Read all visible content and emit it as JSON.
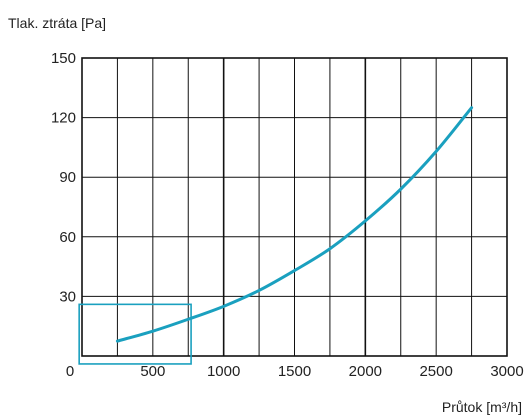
{
  "chart_data": {
    "type": "line",
    "title": "",
    "ylabel": "Tlak. ztráta [Pa]",
    "xlabel": "Průtok [m³/h]",
    "xlim": [
      0,
      3000
    ],
    "ylim": [
      0,
      150
    ],
    "x_ticks": [
      0,
      500,
      1000,
      1500,
      2000,
      2500,
      3000
    ],
    "x_tick_labels": [
      "0",
      "500",
      "1000",
      "1500",
      "2000",
      "2500",
      "3000"
    ],
    "y_ticks": [
      30,
      60,
      90,
      120,
      150
    ],
    "y_tick_labels": [
      "30",
      "60",
      "90",
      "120",
      "150"
    ],
    "x_minor_step": 250,
    "y_grid_step": 30,
    "x_major_grid": [
      1000,
      2000
    ],
    "grid": true,
    "series": [
      {
        "color": "#1aa0bf",
        "x": [
          250,
          500,
          750,
          1000,
          1250,
          1500,
          1750,
          2000,
          2250,
          2500,
          2750
        ],
        "y": [
          7.5,
          12.5,
          18.5,
          25,
          33,
          43,
          54,
          68,
          84,
          103,
          125
        ]
      }
    ],
    "highlight_box": {
      "color": "#1aa0bf",
      "x": [
        -20,
        770
      ],
      "y": [
        -4,
        26
      ]
    }
  }
}
